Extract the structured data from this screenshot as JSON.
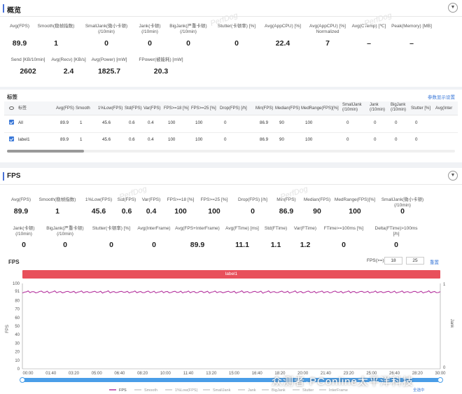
{
  "overview": {
    "title": "概览",
    "collapse_icon": "chevron-down-icon",
    "row1": [
      {
        "label": "Avg(FPS)",
        "value": "89.9"
      },
      {
        "label": "Smooth(稳帧指数)",
        "value": "1"
      },
      {
        "label": "SmallJank(微小卡顿)\n(/10min)",
        "value": "0"
      },
      {
        "label": "Jank(卡顿)\n(/10min)",
        "value": "0"
      },
      {
        "label": "BigJank(严重卡顿)\n(/10min)",
        "value": "0"
      },
      {
        "label": "Stutter(卡顿率) [%]",
        "value": "0"
      },
      {
        "label": "Avg(AppCPU) [%]",
        "value": "22.4"
      },
      {
        "label": "Avg(AppCPU) [%]\nNormalized",
        "value": "7"
      },
      {
        "label": "Avg(CTemp) [℃]",
        "value": "–"
      },
      {
        "label": "Peak(Memory) [MB]",
        "value": "–"
      }
    ],
    "row2": [
      {
        "label": "Send [KB/10min]",
        "value": "2602"
      },
      {
        "label": "Avg(Recv) [KB/s]",
        "value": "2.4"
      },
      {
        "label": "Avg(Power) [mW]",
        "value": "1825.7"
      },
      {
        "label": "FPower(被能耗) [mW]",
        "value": "20.3"
      }
    ]
  },
  "labels": {
    "title": "标签",
    "settings_link": "参数显示设置",
    "headers": [
      "标签",
      "Avg(FPS)",
      "Smooth",
      "1%Low(FPS)",
      "Std(FPS)",
      "Var(FPS)",
      "FPS>=18 [%]",
      "FPS>=25 [%]",
      "Drop(FPS) [/h]",
      "Min(FPS)",
      "Median(FPS)",
      "MedRange(FPS)[%]",
      "SmallJank\n(/10min)",
      "Jank\n(/10min)",
      "BigJank\n(/10min)",
      "Stutter [%]",
      "Avg(Inter"
    ],
    "rows": [
      [
        "All",
        "89.9",
        "1",
        "45.6",
        "0.6",
        "0.4",
        "100",
        "100",
        "0",
        "86.9",
        "90",
        "100",
        "0",
        "0",
        "0",
        "0",
        ""
      ],
      [
        "label1",
        "89.9",
        "1",
        "45.6",
        "0.6",
        "0.4",
        "100",
        "100",
        "0",
        "86.9",
        "90",
        "100",
        "0",
        "0",
        "0",
        "0",
        ""
      ]
    ]
  },
  "fps": {
    "title": "FPS",
    "collapse_icon": "chevron-down-icon",
    "row1": [
      {
        "label": "Avg(FPS)",
        "value": "89.9"
      },
      {
        "label": "Smooth(稳帧指数)",
        "value": "1"
      },
      {
        "label": "1%Low(FPS)",
        "value": "45.6"
      },
      {
        "label": "Std(FPS)",
        "value": "0.6"
      },
      {
        "label": "Var(FPS)",
        "value": "0.4"
      },
      {
        "label": "FPS>=18 [%]",
        "value": "100"
      },
      {
        "label": "FPS>=25 [%]",
        "value": "100"
      },
      {
        "label": "Drop(FPS) [/h]",
        "value": "0"
      },
      {
        "label": "Min(FPS)",
        "value": "86.9"
      },
      {
        "label": "Median(FPS)",
        "value": "90"
      },
      {
        "label": "MedRange(FPS)[%]",
        "value": "100"
      },
      {
        "label": "SmallJank(微小卡顿)\n(/10min)",
        "value": "0"
      }
    ],
    "row2": [
      {
        "label": "Jank(卡顿)\n(/10min)",
        "value": "0"
      },
      {
        "label": "BigJank(严重卡顿)\n(/10min)",
        "value": "0"
      },
      {
        "label": "Stutter(卡顿率) [%]",
        "value": "0"
      },
      {
        "label": "Avg(InterFrame)",
        "value": "0"
      },
      {
        "label": "Avg(FPS+InterFrame)",
        "value": "89.9"
      },
      {
        "label": "Avg(FTime) [ms]",
        "value": "11.1"
      },
      {
        "label": "Std(FTime)",
        "value": "1.1"
      },
      {
        "label": "Var(FTime)",
        "value": "1.2"
      },
      {
        "label": "FTime>=100ms [%]",
        "value": "0"
      },
      {
        "label": "Delta(FTime)>100ms [/h]",
        "value": "0"
      }
    ]
  },
  "chart_data": {
    "type": "line",
    "title": "FPS",
    "ylabel": "FPS",
    "y2label": "Jank",
    "ylim": [
      0,
      100
    ],
    "yticks": [
      0,
      10,
      20,
      30,
      40,
      50,
      60,
      70,
      80,
      91,
      100
    ],
    "y2lim": [
      0,
      1
    ],
    "y2ticks": [
      0,
      1
    ],
    "xticks": [
      "00:00",
      "01:40",
      "03:20",
      "05:00",
      "06:40",
      "08:20",
      "10:00",
      "11:40",
      "13:20",
      "15:00",
      "16:40",
      "18:20",
      "20:00",
      "21:40",
      "23:20",
      "25:00",
      "26:40",
      "28:20",
      "30:00"
    ],
    "label_band": "label1",
    "fps_threshold_label": "FPS(>=)",
    "threshold_1": "18",
    "threshold_2": "25",
    "reset_label": "重置",
    "select_all_label": "全选中",
    "series": [
      {
        "name": "FPS",
        "color": "#b5359f",
        "values": [
          89.8,
          90.1,
          89.7,
          90.2,
          89.9,
          90.3,
          89.6,
          90.0,
          89.8,
          90.2,
          89.9,
          90.1,
          89.7,
          90.3,
          89.8,
          90.0,
          89.9,
          90.2,
          89.7,
          90.1,
          89.8,
          90.0,
          89.9,
          90.2,
          89.6,
          90.1,
          89.9,
          90.0,
          89.8,
          90.2,
          89.9,
          90.1,
          89.7,
          90.0,
          89.8,
          90.3,
          89.9,
          90.0,
          89.8,
          90.1
        ]
      },
      {
        "name": "Smooth",
        "color": "#cccccc",
        "values": []
      },
      {
        "name": "1%Low(FPS)",
        "color": "#cccccc",
        "values": []
      },
      {
        "name": "SmallJank",
        "color": "#cccccc",
        "values": []
      },
      {
        "name": "Jank",
        "color": "#cccccc",
        "values": []
      },
      {
        "name": "BigJank",
        "color": "#cccccc",
        "values": []
      },
      {
        "name": "Stutter",
        "color": "#cccccc",
        "values": []
      },
      {
        "name": "InterFrame",
        "color": "#cccccc",
        "values": []
      }
    ]
  },
  "watermark": "PerfDog",
  "footer_watermark": "众测者·PConline太平洋科技",
  "colors": {
    "accent": "#4a72d8",
    "band": "#e8505b",
    "fps_line": "#b5359f",
    "slider": "#4a9ee8"
  }
}
